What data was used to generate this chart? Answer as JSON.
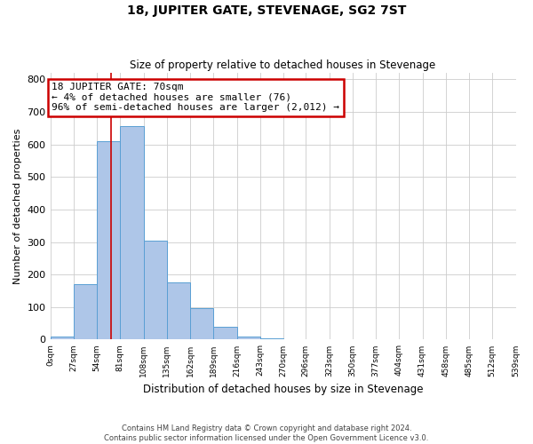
{
  "title": "18, JUPITER GATE, STEVENAGE, SG2 7ST",
  "subtitle": "Size of property relative to detached houses in Stevenage",
  "xlabel": "Distribution of detached houses by size in Stevenage",
  "ylabel": "Number of detached properties",
  "bin_edges": [
    0,
    27,
    54,
    81,
    108,
    135,
    162,
    189,
    216,
    243,
    270,
    296,
    323,
    350,
    377,
    404,
    431,
    458,
    485,
    512,
    539
  ],
  "bar_heights": [
    10,
    170,
    610,
    655,
    305,
    175,
    98,
    40,
    10,
    3,
    2,
    1,
    1,
    0,
    0,
    0,
    0,
    0,
    0,
    0
  ],
  "bar_color": "#aec6e8",
  "bar_edge_color": "#5a9fd4",
  "property_line_x": 70,
  "property_line_color": "#cc0000",
  "annotation_text": "18 JUPITER GATE: 70sqm\n← 4% of detached houses are smaller (76)\n96% of semi-detached houses are larger (2,012) →",
  "annotation_box_color": "#cc0000",
  "ylim": [
    0,
    820
  ],
  "yticks": [
    0,
    100,
    200,
    300,
    400,
    500,
    600,
    700,
    800
  ],
  "xtick_labels": [
    "0sqm",
    "27sqm",
    "54sqm",
    "81sqm",
    "108sqm",
    "135sqm",
    "162sqm",
    "189sqm",
    "216sqm",
    "243sqm",
    "270sqm",
    "296sqm",
    "323sqm",
    "350sqm",
    "377sqm",
    "404sqm",
    "431sqm",
    "458sqm",
    "485sqm",
    "512sqm",
    "539sqm"
  ],
  "footnote": "Contains HM Land Registry data © Crown copyright and database right 2024.\nContains public sector information licensed under the Open Government Licence v3.0.",
  "bg_color": "#ffffff",
  "grid_color": "#cccccc",
  "title_fontsize": 10,
  "subtitle_fontsize": 8.5,
  "ylabel_fontsize": 8,
  "xlabel_fontsize": 8.5,
  "ytick_fontsize": 8,
  "xtick_fontsize": 6.5,
  "annotation_fontsize": 8,
  "footnote_fontsize": 6
}
